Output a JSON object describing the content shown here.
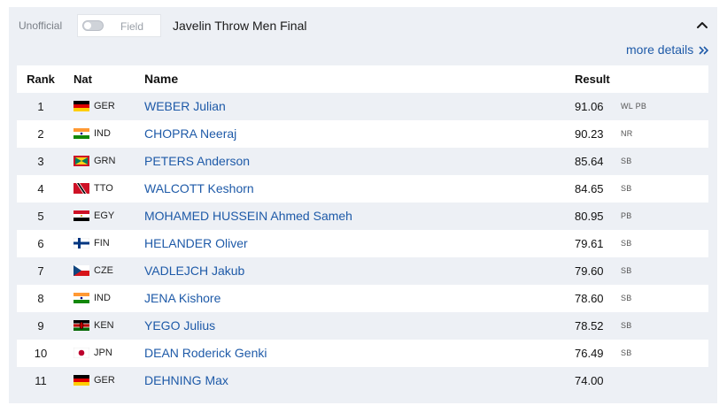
{
  "header": {
    "unofficial_label": "Unofficial",
    "toggle_label": "Field",
    "event_title": "Javelin Throw Men Final",
    "collapse_icon": "chevron-up-icon",
    "more_details_label": "more details",
    "more_details_icon": "double-chevron-right-icon"
  },
  "table": {
    "columns": {
      "rank": "Rank",
      "nat": "Nat",
      "name": "Name",
      "result": "Result"
    },
    "rows": [
      {
        "rank": "1",
        "nat": "GER",
        "name": "WEBER Julian",
        "result": "91.06",
        "note": "WL PB"
      },
      {
        "rank": "2",
        "nat": "IND",
        "name": "CHOPRA Neeraj",
        "result": "90.23",
        "note": "NR"
      },
      {
        "rank": "3",
        "nat": "GRN",
        "name": "PETERS Anderson",
        "result": "85.64",
        "note": "SB"
      },
      {
        "rank": "4",
        "nat": "TTO",
        "name": "WALCOTT Keshorn",
        "result": "84.65",
        "note": "SB"
      },
      {
        "rank": "5",
        "nat": "EGY",
        "name": "MOHAMED HUSSEIN Ahmed Sameh",
        "result": "80.95",
        "note": "PB"
      },
      {
        "rank": "6",
        "nat": "FIN",
        "name": "HELANDER Oliver",
        "result": "79.61",
        "note": "SB"
      },
      {
        "rank": "7",
        "nat": "CZE",
        "name": "VADLEJCH Jakub",
        "result": "79.60",
        "note": "SB"
      },
      {
        "rank": "8",
        "nat": "IND",
        "name": "JENA Kishore",
        "result": "78.60",
        "note": "SB"
      },
      {
        "rank": "9",
        "nat": "KEN",
        "name": "YEGO Julius",
        "result": "78.52",
        "note": "SB"
      },
      {
        "rank": "10",
        "nat": "JPN",
        "name": "DEAN Roderick Genki",
        "result": "76.49",
        "note": "SB"
      },
      {
        "rank": "11",
        "nat": "GER",
        "name": "DEHNING Max",
        "result": "74.00",
        "note": ""
      }
    ]
  },
  "colors": {
    "panel_bg": "#edf0f5",
    "link": "#1e5aa8",
    "row_white": "#ffffff"
  }
}
